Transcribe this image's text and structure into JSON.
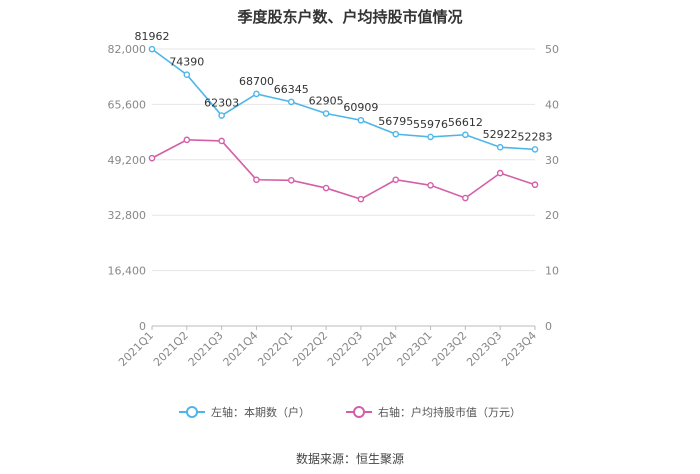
{
  "chart_data": {
    "type": "line",
    "title": "季度股东户数、户均持股市值情况",
    "categories": [
      "2021Q1",
      "2021Q2",
      "2021Q3",
      "2021Q4",
      "2022Q1",
      "2022Q2",
      "2022Q3",
      "2022Q4",
      "2023Q1",
      "2023Q2",
      "2023Q3",
      "2023Q4"
    ],
    "series": [
      {
        "name": "左轴：本期数（户）",
        "axis": "left",
        "color": "#4db6e8",
        "values": [
          81962,
          74390,
          62303,
          68700,
          66345,
          62905,
          60909,
          56795,
          55976,
          56612,
          52922,
          52283
        ],
        "data_labels": [
          "81962",
          "74390",
          "62303",
          "68700",
          "66345",
          "62905",
          "60909",
          "56795",
          "55976",
          "56612",
          "52922",
          "52283"
        ]
      },
      {
        "name": "右轴：户均持股市值（万元）",
        "axis": "right",
        "color": "#d45fa8",
        "values": [
          30.3,
          33.6,
          33.4,
          26.4,
          26.3,
          24.9,
          22.9,
          26.4,
          25.4,
          23.1,
          27.6,
          25.5
        ]
      }
    ],
    "left_axis": {
      "ylim": [
        0,
        82000
      ],
      "ticks": [
        "0",
        "16,400",
        "32,800",
        "49,200",
        "65,600",
        "82,000"
      ]
    },
    "right_axis": {
      "ylim": [
        0,
        50
      ],
      "ticks": [
        "0",
        "10",
        "20",
        "30",
        "40",
        "50"
      ]
    },
    "grid": true,
    "legend_position": "bottom"
  },
  "source": "数据来源：恒生聚源"
}
